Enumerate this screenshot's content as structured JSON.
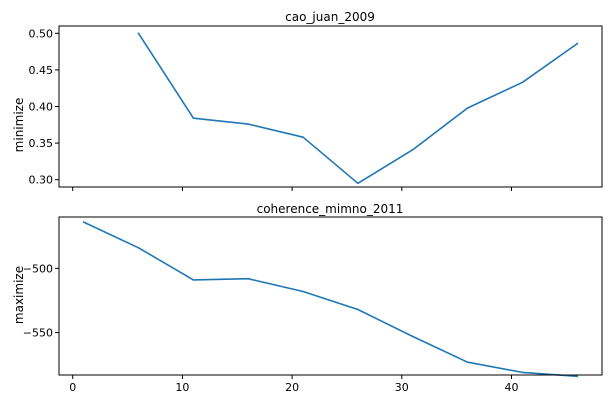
{
  "chart_data": [
    {
      "type": "line",
      "title": "cao_juan_2009",
      "xlabel": "",
      "ylabel": "minimize",
      "xlim": [
        -1.25,
        48.25
      ],
      "ylim": [
        0.29,
        0.51
      ],
      "xticks": [
        0,
        10,
        20,
        30,
        40
      ],
      "yticks": [
        0.3,
        0.35,
        0.4,
        0.45,
        0.5
      ],
      "ytick_labels": [
        "0.30",
        "0.35",
        "0.40",
        "0.45",
        "0.50"
      ],
      "show_xtick_labels": false,
      "color": "#1f77b4",
      "x": [
        6,
        11,
        16,
        21,
        26,
        31,
        36,
        41,
        46
      ],
      "y": [
        0.5,
        0.384,
        0.376,
        0.358,
        0.295,
        0.341,
        0.398,
        0.433,
        0.486
      ]
    },
    {
      "type": "line",
      "title": "coherence_mimno_2011",
      "xlabel": "",
      "ylabel": "maximize",
      "xlim": [
        -1.25,
        48.25
      ],
      "ylim": [
        -583,
        -460
      ],
      "xticks": [
        0,
        10,
        20,
        30,
        40
      ],
      "xtick_labels": [
        "0",
        "10",
        "20",
        "30",
        "40"
      ],
      "yticks": [
        -500,
        -550
      ],
      "ytick_labels": [
        "−500",
        "−550"
      ],
      "show_xtick_labels": true,
      "color": "#1f77b4",
      "x": [
        1,
        6,
        11,
        16,
        21,
        26,
        31,
        36,
        41,
        46
      ],
      "y": [
        -464,
        -484,
        -509,
        -508,
        -518,
        -532,
        -553,
        -573,
        -581,
        -584
      ]
    }
  ]
}
